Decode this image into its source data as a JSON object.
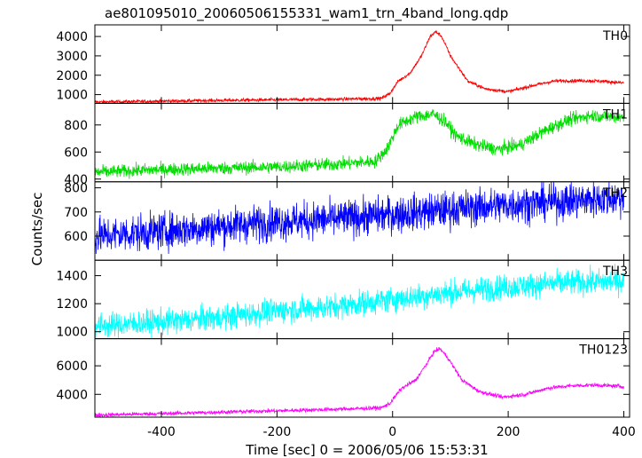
{
  "chart_data": {
    "type": "line",
    "title": "ae801095010_20060506155331_wam1_trn_4band_long.qdp",
    "xlabel": "Time [sec] 0 = 2006/05/06 15:53:31",
    "ylabel": "Counts/sec",
    "xlim": [
      -515,
      410
    ],
    "x_ticks": [
      -400,
      -200,
      0,
      200,
      400
    ],
    "grid": false,
    "panels": [
      {
        "name": "TH0",
        "color": "#ff0000",
        "ylim": [
          550,
          4600
        ],
        "y_ticks": [
          1000,
          2000,
          3000,
          4000
        ],
        "noise": 45,
        "points": [
          [
            -515,
            620
          ],
          [
            -400,
            660
          ],
          [
            -300,
            700
          ],
          [
            -200,
            730
          ],
          [
            -100,
            760
          ],
          [
            -20,
            800
          ],
          [
            -5,
            1050
          ],
          [
            10,
            1700
          ],
          [
            30,
            2100
          ],
          [
            50,
            3000
          ],
          [
            65,
            4000
          ],
          [
            75,
            4250
          ],
          [
            85,
            4000
          ],
          [
            100,
            3000
          ],
          [
            130,
            1700
          ],
          [
            160,
            1300
          ],
          [
            200,
            1150
          ],
          [
            240,
            1450
          ],
          [
            280,
            1700
          ],
          [
            320,
            1720
          ],
          [
            360,
            1700
          ],
          [
            400,
            1600
          ]
        ]
      },
      {
        "name": "TH1",
        "color": "#00dd00",
        "ylim": [
          380,
          960
        ],
        "y_ticks": [
          400,
          600,
          800
        ],
        "noise": 24,
        "points": [
          [
            -515,
            450
          ],
          [
            -400,
            470
          ],
          [
            -300,
            480
          ],
          [
            -200,
            490
          ],
          [
            -100,
            510
          ],
          [
            -30,
            530
          ],
          [
            -10,
            620
          ],
          [
            10,
            800
          ],
          [
            40,
            860
          ],
          [
            70,
            880
          ],
          [
            90,
            830
          ],
          [
            110,
            720
          ],
          [
            140,
            660
          ],
          [
            180,
            620
          ],
          [
            220,
            650
          ],
          [
            260,
            750
          ],
          [
            300,
            830
          ],
          [
            340,
            870
          ],
          [
            380,
            860
          ],
          [
            400,
            855
          ]
        ]
      },
      {
        "name": "TH2",
        "color": "#0000ff",
        "ylim": [
          500,
          825
        ],
        "y_ticks": [
          600,
          700,
          800
        ],
        "noise": 38,
        "points": [
          [
            -515,
            600
          ],
          [
            -400,
            620
          ],
          [
            -300,
            640
          ],
          [
            -200,
            660
          ],
          [
            -100,
            670
          ],
          [
            0,
            690
          ],
          [
            100,
            710
          ],
          [
            200,
            730
          ],
          [
            300,
            745
          ],
          [
            400,
            760
          ]
        ]
      },
      {
        "name": "TH3",
        "color": "#00ffff",
        "ylim": [
          950,
          1510
        ],
        "y_ticks": [
          1000,
          1200,
          1400
        ],
        "noise": 45,
        "points": [
          [
            -515,
            1040
          ],
          [
            -400,
            1070
          ],
          [
            -300,
            1100
          ],
          [
            -200,
            1150
          ],
          [
            -100,
            1180
          ],
          [
            0,
            1230
          ],
          [
            100,
            1280
          ],
          [
            200,
            1320
          ],
          [
            300,
            1350
          ],
          [
            400,
            1360
          ]
        ]
      },
      {
        "name": "TH0123",
        "color": "#ff00ff",
        "ylim": [
          2400,
          7900
        ],
        "y_ticks": [
          4000,
          6000
        ],
        "noise": 70,
        "points": [
          [
            -515,
            2550
          ],
          [
            -400,
            2650
          ],
          [
            -300,
            2750
          ],
          [
            -200,
            2850
          ],
          [
            -100,
            2950
          ],
          [
            -20,
            3050
          ],
          [
            -5,
            3350
          ],
          [
            15,
            4400
          ],
          [
            40,
            5000
          ],
          [
            60,
            6200
          ],
          [
            72,
            7000
          ],
          [
            82,
            7200
          ],
          [
            95,
            6600
          ],
          [
            120,
            5000
          ],
          [
            150,
            4200
          ],
          [
            190,
            3800
          ],
          [
            230,
            4000
          ],
          [
            270,
            4450
          ],
          [
            310,
            4600
          ],
          [
            350,
            4650
          ],
          [
            400,
            4550
          ]
        ]
      }
    ]
  }
}
